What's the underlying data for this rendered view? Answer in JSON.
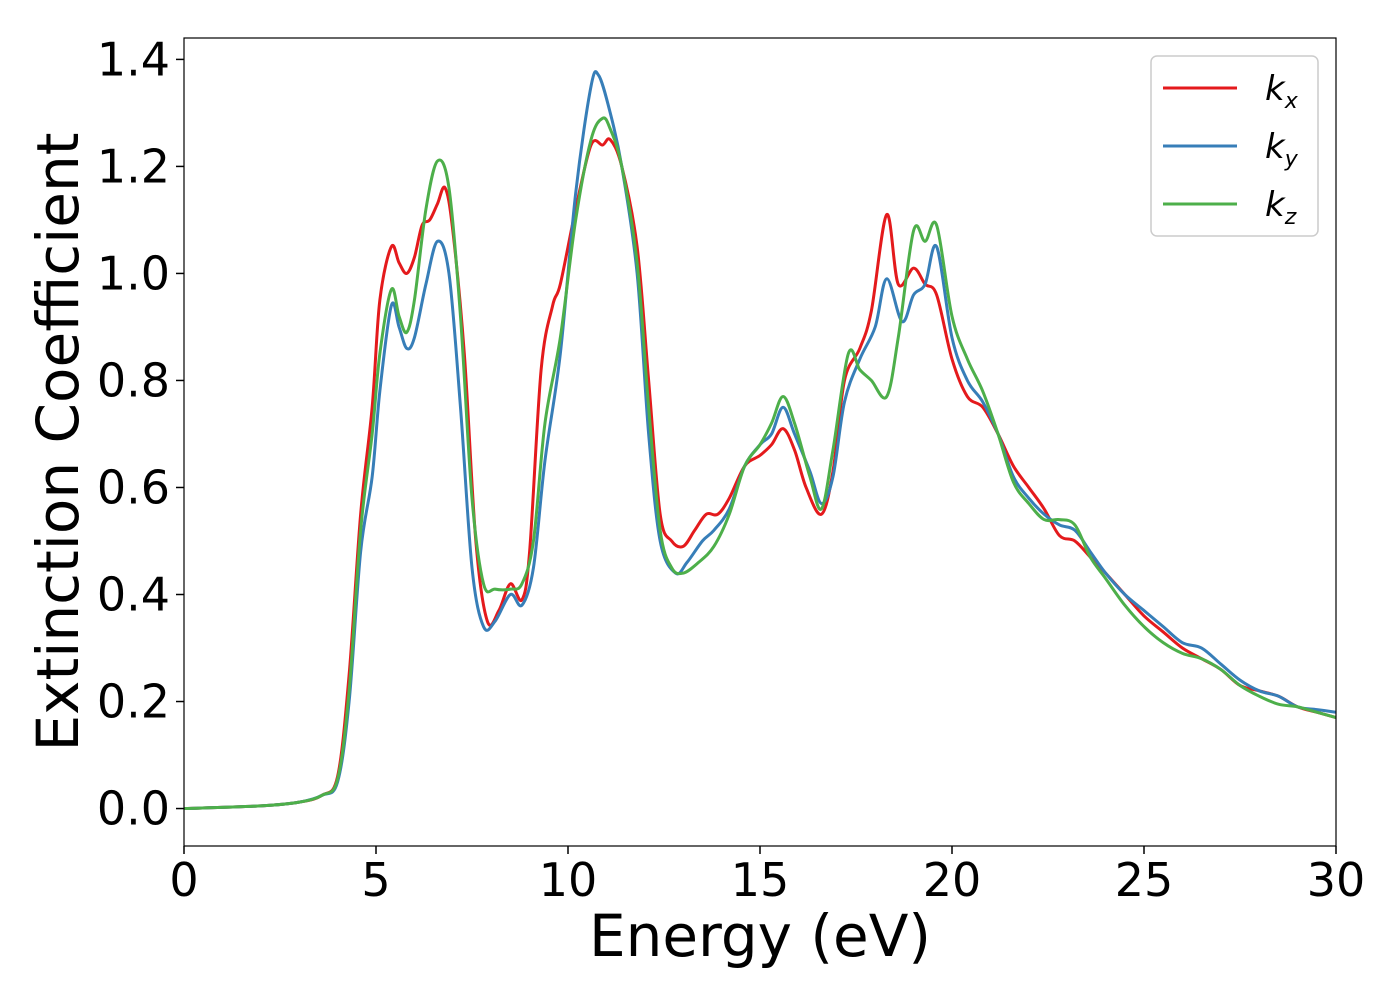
{
  "chart_data": {
    "type": "line",
    "xlabel": "Energy (eV)",
    "ylabel": "Extinction Coefficient",
    "xlim": [
      0,
      30
    ],
    "ylim": [
      -0.07,
      1.44
    ],
    "xticks": [
      0,
      5,
      10,
      15,
      20,
      25,
      30
    ],
    "yticks": [
      0.0,
      0.2,
      0.4,
      0.6,
      0.8,
      1.0,
      1.2,
      1.4
    ],
    "xtick_labels": [
      "0",
      "5",
      "10",
      "15",
      "20",
      "25",
      "30"
    ],
    "ytick_labels": [
      "0.0",
      "0.2",
      "0.4",
      "0.6",
      "0.8",
      "1.0",
      "1.2",
      "1.4"
    ],
    "grid": false,
    "legend_position": "top-right",
    "series": [
      {
        "name": "kx",
        "label_base": "k",
        "label_sub": "x",
        "color": "#e41a1c",
        "points": [
          [
            0,
            0
          ],
          [
            2,
            0.005
          ],
          [
            3,
            0.012
          ],
          [
            3.6,
            0.025
          ],
          [
            4.0,
            0.06
          ],
          [
            4.3,
            0.25
          ],
          [
            4.6,
            0.55
          ],
          [
            4.9,
            0.75
          ],
          [
            5.1,
            0.95
          ],
          [
            5.4,
            1.05
          ],
          [
            5.6,
            1.02
          ],
          [
            5.8,
            1.0
          ],
          [
            6.0,
            1.03
          ],
          [
            6.2,
            1.09
          ],
          [
            6.4,
            1.1
          ],
          [
            6.6,
            1.13
          ],
          [
            6.8,
            1.16
          ],
          [
            7.0,
            1.08
          ],
          [
            7.3,
            0.85
          ],
          [
            7.6,
            0.5
          ],
          [
            7.9,
            0.35
          ],
          [
            8.2,
            0.37
          ],
          [
            8.5,
            0.42
          ],
          [
            8.8,
            0.39
          ],
          [
            9.0,
            0.48
          ],
          [
            9.3,
            0.82
          ],
          [
            9.6,
            0.94
          ],
          [
            9.8,
            0.98
          ],
          [
            10.2,
            1.12
          ],
          [
            10.6,
            1.24
          ],
          [
            10.9,
            1.24
          ],
          [
            11.1,
            1.25
          ],
          [
            11.4,
            1.2
          ],
          [
            11.8,
            1.05
          ],
          [
            12.1,
            0.8
          ],
          [
            12.4,
            0.55
          ],
          [
            12.7,
            0.5
          ],
          [
            13.0,
            0.49
          ],
          [
            13.3,
            0.52
          ],
          [
            13.6,
            0.55
          ],
          [
            13.9,
            0.55
          ],
          [
            14.2,
            0.58
          ],
          [
            14.6,
            0.64
          ],
          [
            15.0,
            0.66
          ],
          [
            15.3,
            0.68
          ],
          [
            15.6,
            0.71
          ],
          [
            15.9,
            0.67
          ],
          [
            16.2,
            0.6
          ],
          [
            16.6,
            0.55
          ],
          [
            16.9,
            0.63
          ],
          [
            17.2,
            0.8
          ],
          [
            17.6,
            0.86
          ],
          [
            17.9,
            0.93
          ],
          [
            18.3,
            1.11
          ],
          [
            18.6,
            0.98
          ],
          [
            19.0,
            1.01
          ],
          [
            19.3,
            0.98
          ],
          [
            19.6,
            0.96
          ],
          [
            20.0,
            0.84
          ],
          [
            20.4,
            0.77
          ],
          [
            20.8,
            0.75
          ],
          [
            21.2,
            0.7
          ],
          [
            21.6,
            0.64
          ],
          [
            22.0,
            0.6
          ],
          [
            22.4,
            0.56
          ],
          [
            22.8,
            0.51
          ],
          [
            23.2,
            0.5
          ],
          [
            23.6,
            0.47
          ],
          [
            24.0,
            0.44
          ],
          [
            24.5,
            0.4
          ],
          [
            25.0,
            0.36
          ],
          [
            25.5,
            0.33
          ],
          [
            26.0,
            0.3
          ],
          [
            26.5,
            0.28
          ],
          [
            27.0,
            0.26
          ],
          [
            27.5,
            0.23
          ],
          [
            28.0,
            0.22
          ],
          [
            28.5,
            0.21
          ],
          [
            29.0,
            0.19
          ],
          [
            29.5,
            0.18
          ],
          [
            30,
            0.17
          ]
        ]
      },
      {
        "name": "ky",
        "label_base": "k",
        "label_sub": "y",
        "color": "#377eb8",
        "points": [
          [
            0,
            0
          ],
          [
            2,
            0.005
          ],
          [
            3,
            0.012
          ],
          [
            3.6,
            0.025
          ],
          [
            4.0,
            0.05
          ],
          [
            4.3,
            0.2
          ],
          [
            4.6,
            0.48
          ],
          [
            4.9,
            0.62
          ],
          [
            5.1,
            0.78
          ],
          [
            5.4,
            0.94
          ],
          [
            5.6,
            0.9
          ],
          [
            5.8,
            0.86
          ],
          [
            6.0,
            0.88
          ],
          [
            6.3,
            0.98
          ],
          [
            6.6,
            1.06
          ],
          [
            6.9,
            1.0
          ],
          [
            7.2,
            0.75
          ],
          [
            7.5,
            0.45
          ],
          [
            7.8,
            0.34
          ],
          [
            8.1,
            0.35
          ],
          [
            8.5,
            0.4
          ],
          [
            8.8,
            0.38
          ],
          [
            9.1,
            0.45
          ],
          [
            9.4,
            0.65
          ],
          [
            9.8,
            0.85
          ],
          [
            10.2,
            1.15
          ],
          [
            10.6,
            1.35
          ],
          [
            10.8,
            1.37
          ],
          [
            11.1,
            1.3
          ],
          [
            11.4,
            1.2
          ],
          [
            11.8,
            1.0
          ],
          [
            12.1,
            0.7
          ],
          [
            12.4,
            0.5
          ],
          [
            12.8,
            0.44
          ],
          [
            13.1,
            0.46
          ],
          [
            13.5,
            0.5
          ],
          [
            13.8,
            0.52
          ],
          [
            14.2,
            0.56
          ],
          [
            14.6,
            0.64
          ],
          [
            15.0,
            0.68
          ],
          [
            15.3,
            0.7
          ],
          [
            15.6,
            0.75
          ],
          [
            15.9,
            0.7
          ],
          [
            16.3,
            0.63
          ],
          [
            16.6,
            0.57
          ],
          [
            16.9,
            0.62
          ],
          [
            17.2,
            0.76
          ],
          [
            17.6,
            0.84
          ],
          [
            18.0,
            0.9
          ],
          [
            18.3,
            0.99
          ],
          [
            18.7,
            0.91
          ],
          [
            19.0,
            0.96
          ],
          [
            19.3,
            0.98
          ],
          [
            19.6,
            1.05
          ],
          [
            20.0,
            0.88
          ],
          [
            20.4,
            0.8
          ],
          [
            20.8,
            0.76
          ],
          [
            21.2,
            0.7
          ],
          [
            21.6,
            0.62
          ],
          [
            22.0,
            0.58
          ],
          [
            22.4,
            0.55
          ],
          [
            22.8,
            0.53
          ],
          [
            23.2,
            0.52
          ],
          [
            23.6,
            0.48
          ],
          [
            24.0,
            0.44
          ],
          [
            24.5,
            0.4
          ],
          [
            25.0,
            0.37
          ],
          [
            25.5,
            0.34
          ],
          [
            26.0,
            0.31
          ],
          [
            26.5,
            0.3
          ],
          [
            27.0,
            0.27
          ],
          [
            27.5,
            0.24
          ],
          [
            28.0,
            0.22
          ],
          [
            28.5,
            0.21
          ],
          [
            29.0,
            0.19
          ],
          [
            29.5,
            0.185
          ],
          [
            30,
            0.18
          ]
        ]
      },
      {
        "name": "kz",
        "label_base": "k",
        "label_sub": "z",
        "color": "#4daf4a",
        "points": [
          [
            0,
            0
          ],
          [
            2,
            0.005
          ],
          [
            3,
            0.012
          ],
          [
            3.6,
            0.025
          ],
          [
            4.0,
            0.055
          ],
          [
            4.3,
            0.22
          ],
          [
            4.6,
            0.52
          ],
          [
            4.9,
            0.7
          ],
          [
            5.1,
            0.85
          ],
          [
            5.4,
            0.97
          ],
          [
            5.6,
            0.92
          ],
          [
            5.8,
            0.89
          ],
          [
            6.0,
            0.95
          ],
          [
            6.3,
            1.12
          ],
          [
            6.6,
            1.21
          ],
          [
            6.9,
            1.16
          ],
          [
            7.2,
            0.92
          ],
          [
            7.5,
            0.58
          ],
          [
            7.8,
            0.42
          ],
          [
            8.1,
            0.41
          ],
          [
            8.5,
            0.41
          ],
          [
            8.8,
            0.42
          ],
          [
            9.1,
            0.5
          ],
          [
            9.4,
            0.72
          ],
          [
            9.8,
            0.88
          ],
          [
            10.2,
            1.1
          ],
          [
            10.6,
            1.25
          ],
          [
            10.9,
            1.29
          ],
          [
            11.1,
            1.27
          ],
          [
            11.4,
            1.2
          ],
          [
            11.8,
            1.02
          ],
          [
            12.1,
            0.75
          ],
          [
            12.4,
            0.52
          ],
          [
            12.7,
            0.45
          ],
          [
            13.0,
            0.44
          ],
          [
            13.4,
            0.46
          ],
          [
            13.8,
            0.49
          ],
          [
            14.2,
            0.55
          ],
          [
            14.6,
            0.64
          ],
          [
            15.0,
            0.68
          ],
          [
            15.3,
            0.72
          ],
          [
            15.6,
            0.77
          ],
          [
            15.9,
            0.72
          ],
          [
            16.3,
            0.62
          ],
          [
            16.6,
            0.56
          ],
          [
            16.9,
            0.67
          ],
          [
            17.3,
            0.85
          ],
          [
            17.6,
            0.82
          ],
          [
            17.9,
            0.8
          ],
          [
            18.3,
            0.77
          ],
          [
            18.6,
            0.88
          ],
          [
            19.0,
            1.08
          ],
          [
            19.3,
            1.06
          ],
          [
            19.6,
            1.09
          ],
          [
            20.0,
            0.92
          ],
          [
            20.4,
            0.84
          ],
          [
            20.8,
            0.78
          ],
          [
            21.2,
            0.7
          ],
          [
            21.6,
            0.61
          ],
          [
            22.0,
            0.57
          ],
          [
            22.4,
            0.54
          ],
          [
            22.8,
            0.54
          ],
          [
            23.2,
            0.53
          ],
          [
            23.6,
            0.47
          ],
          [
            24.0,
            0.43
          ],
          [
            24.5,
            0.38
          ],
          [
            25.0,
            0.34
          ],
          [
            25.5,
            0.31
          ],
          [
            26.0,
            0.29
          ],
          [
            26.5,
            0.28
          ],
          [
            27.0,
            0.26
          ],
          [
            27.5,
            0.23
          ],
          [
            28.0,
            0.21
          ],
          [
            28.5,
            0.195
          ],
          [
            29.0,
            0.19
          ],
          [
            29.5,
            0.18
          ],
          [
            30,
            0.17
          ]
        ]
      }
    ]
  }
}
